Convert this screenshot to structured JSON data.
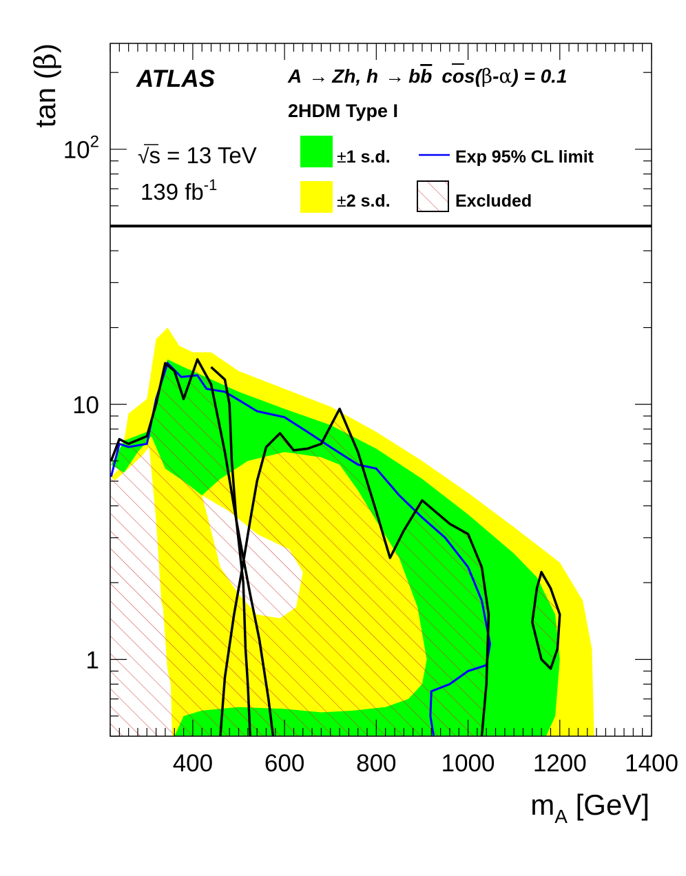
{
  "chart_data": {
    "type": "area",
    "experiment": "ATLAS",
    "process": {
      "prefix": "A",
      "arrow1": "→",
      "mid": "Zh, h",
      "arrow2": "→",
      "b": "b",
      "bbar": "b",
      "cos_label": "cos(",
      "beta": "β",
      "dash": "-",
      "alpha": "α",
      "cos_value": ") = 0.1"
    },
    "model": "2HDM Type I",
    "energy": {
      "sqrt": "√",
      "s": "s",
      "value": " = 13 TeV"
    },
    "luminosity": {
      "value": "139 fb",
      "exponent": "-1"
    },
    "xlabel": {
      "main": "m",
      "sub": "A",
      "unit": " [GeV]"
    },
    "ylabel": {
      "text": "tan (",
      "beta": "β",
      "close": ")"
    },
    "xlim": [
      220,
      1400
    ],
    "ylim": [
      0.5,
      260
    ],
    "yscale": "log",
    "x_ticks": [
      {
        "value": 400,
        "label": "400"
      },
      {
        "value": 600,
        "label": "600"
      },
      {
        "value": 800,
        "label": "800"
      },
      {
        "value": 1000,
        "label": "1000"
      },
      {
        "value": 1200,
        "label": "1200"
      },
      {
        "value": 1400,
        "label": "1400"
      }
    ],
    "y_ticks": [
      {
        "value": 1,
        "label": "1"
      },
      {
        "value": 10,
        "label": "10"
      },
      {
        "value": 100,
        "base": "10",
        "exp": "2"
      }
    ],
    "legend_cutoff_tanb": 50,
    "legend": {
      "one_sigma": {
        "pm": "±",
        "label": "1 s.d.",
        "color": "#00ff00"
      },
      "two_sigma": {
        "pm": "±",
        "label": "2 s.d.",
        "color": "#ffff00"
      },
      "expected": {
        "label": "Exp 95% CL limit",
        "color": "#0000ff"
      },
      "excluded": {
        "label": "Excluded",
        "hatch_color": "#cc3333"
      }
    },
    "band_2sigma": {
      "upper": [
        [
          222,
          5.2
        ],
        [
          240,
          5.6
        ],
        [
          260,
          9.2
        ],
        [
          300,
          10.5
        ],
        [
          320,
          18
        ],
        [
          345,
          20
        ],
        [
          370,
          17
        ],
        [
          400,
          16
        ],
        [
          440,
          16
        ],
        [
          500,
          13.5
        ],
        [
          600,
          11.5
        ],
        [
          700,
          9.8
        ],
        [
          800,
          7.8
        ],
        [
          900,
          6.0
        ],
        [
          1000,
          4.5
        ],
        [
          1100,
          3.3
        ],
        [
          1200,
          2.4
        ],
        [
          1250,
          1.7
        ],
        [
          1270,
          1.1
        ],
        [
          1275,
          0.5
        ]
      ],
      "lower": [
        [
          222,
          5.2
        ],
        [
          240,
          4.8
        ],
        [
          290,
          3.0
        ],
        [
          335,
          1.6
        ],
        [
          355,
          0.5
        ]
      ]
    },
    "band_1sigma": {
      "upper": [
        [
          222,
          5.8
        ],
        [
          250,
          7.2
        ],
        [
          300,
          7.8
        ],
        [
          330,
          12
        ],
        [
          345,
          15
        ],
        [
          380,
          14
        ],
        [
          420,
          13
        ],
        [
          500,
          11.2
        ],
        [
          600,
          9.6
        ],
        [
          700,
          8.3
        ],
        [
          800,
          6.7
        ],
        [
          900,
          5.1
        ],
        [
          1000,
          3.7
        ],
        [
          1100,
          2.6
        ],
        [
          1150,
          2.1
        ],
        [
          1190,
          1.5
        ],
        [
          1200,
          1.0
        ],
        [
          1190,
          0.6
        ],
        [
          1170,
          0.5
        ]
      ],
      "lower": [
        [
          222,
          5.8
        ],
        [
          250,
          5.4
        ],
        [
          280,
          6.5
        ],
        [
          310,
          7.5
        ],
        [
          340,
          5.6
        ],
        [
          380,
          5.0
        ],
        [
          420,
          4.4
        ],
        [
          460,
          5.1
        ],
        [
          520,
          6.0
        ],
        [
          600,
          6.5
        ],
        [
          680,
          6.2
        ],
        [
          720,
          5.8
        ],
        [
          760,
          4.6
        ],
        [
          800,
          3.5
        ],
        [
          850,
          2.5
        ],
        [
          890,
          1.6
        ],
        [
          910,
          1.0
        ],
        [
          900,
          0.8
        ],
        [
          870,
          0.7
        ],
        [
          820,
          0.65
        ],
        [
          750,
          0.63
        ],
        [
          680,
          0.62
        ],
        [
          600,
          0.64
        ],
        [
          500,
          0.65
        ],
        [
          420,
          0.63
        ],
        [
          380,
          0.6
        ],
        [
          360,
          0.5
        ]
      ]
    },
    "white_region_1": [
      [
        228,
        5.0
      ],
      [
        260,
        5.6
      ],
      [
        290,
        6.3
      ],
      [
        305,
        6.8
      ],
      [
        320,
        3.5
      ],
      [
        340,
        1.0
      ],
      [
        352,
        0.8
      ],
      [
        355,
        0.5
      ],
      [
        228,
        0.5
      ]
    ],
    "white_region_2": [
      [
        420,
        4.4
      ],
      [
        480,
        3.8
      ],
      [
        540,
        3.1
      ],
      [
        610,
        2.7
      ],
      [
        640,
        2.2
      ],
      [
        625,
        1.6
      ],
      [
        590,
        1.45
      ],
      [
        540,
        1.5
      ],
      [
        500,
        1.8
      ],
      [
        460,
        2.3
      ],
      [
        440,
        3.2
      ]
    ],
    "expected_limit": {
      "name": "Exp 95% CL limit",
      "points": [
        [
          222,
          5.2
        ],
        [
          240,
          7.0
        ],
        [
          260,
          6.8
        ],
        [
          300,
          7.0
        ],
        [
          320,
          10.5
        ],
        [
          345,
          14.5
        ],
        [
          375,
          12.8
        ],
        [
          410,
          13.0
        ],
        [
          430,
          11.5
        ],
        [
          470,
          11.2
        ],
        [
          500,
          10.4
        ],
        [
          540,
          9.4
        ],
        [
          600,
          8.9
        ],
        [
          650,
          7.8
        ],
        [
          700,
          6.8
        ],
        [
          760,
          5.8
        ],
        [
          800,
          5.6
        ],
        [
          850,
          4.4
        ],
        [
          900,
          3.6
        ],
        [
          950,
          3.0
        ],
        [
          1000,
          2.3
        ],
        [
          1030,
          1.7
        ],
        [
          1048,
          1.15
        ],
        [
          1040,
          0.95
        ],
        [
          1000,
          0.9
        ],
        [
          960,
          0.8
        ],
        [
          920,
          0.75
        ],
        [
          918,
          0.6
        ],
        [
          925,
          0.5
        ]
      ]
    },
    "observed_contours": [
      {
        "name": "observed-left",
        "points": [
          [
            222,
            6.0
          ],
          [
            240,
            7.3
          ],
          [
            260,
            7.0
          ],
          [
            300,
            7.5
          ],
          [
            320,
            10.0
          ],
          [
            340,
            14.5
          ],
          [
            360,
            13.5
          ],
          [
            380,
            10.5
          ],
          [
            410,
            15.0
          ],
          [
            440,
            12.0
          ],
          [
            470,
            6.5
          ],
          [
            495,
            3.5
          ],
          [
            510,
            2.0
          ],
          [
            515,
            1.1
          ],
          [
            520,
            0.8
          ],
          [
            525,
            0.5
          ]
        ]
      },
      {
        "name": "observed-mid-1",
        "points": [
          [
            460,
            0.5
          ],
          [
            470,
            0.85
          ],
          [
            490,
            1.5
          ],
          [
            510,
            2.4
          ],
          [
            525,
            3.5
          ],
          [
            540,
            5.0
          ],
          [
            560,
            6.8
          ],
          [
            590,
            7.7
          ],
          [
            620,
            6.6
          ],
          [
            650,
            6.7
          ],
          [
            680,
            7.0
          ],
          [
            720,
            9.6
          ],
          [
            760,
            6.5
          ],
          [
            800,
            3.8
          ],
          [
            830,
            2.5
          ],
          [
            860,
            3.2
          ],
          [
            900,
            4.2
          ],
          [
            960,
            3.4
          ],
          [
            1000,
            3.1
          ],
          [
            1030,
            2.3
          ],
          [
            1045,
            1.5
          ],
          [
            1040,
            0.8
          ],
          [
            1030,
            0.5
          ]
        ]
      },
      {
        "name": "observed-mid-2",
        "points": [
          [
            575,
            0.5
          ],
          [
            565,
            0.7
          ],
          [
            545,
            1.2
          ],
          [
            525,
            1.8
          ],
          [
            510,
            2.5
          ],
          [
            495,
            3.5
          ],
          [
            485,
            6.0
          ],
          [
            480,
            10.0
          ],
          [
            470,
            12.5
          ],
          [
            440,
            14.0
          ]
        ]
      },
      {
        "name": "observed-right-island",
        "points": [
          [
            1160,
            2.2
          ],
          [
            1180,
            1.9
          ],
          [
            1200,
            1.5
          ],
          [
            1195,
            1.1
          ],
          [
            1180,
            0.92
          ],
          [
            1160,
            1.0
          ],
          [
            1140,
            1.4
          ],
          [
            1150,
            1.9
          ]
        ]
      }
    ]
  }
}
